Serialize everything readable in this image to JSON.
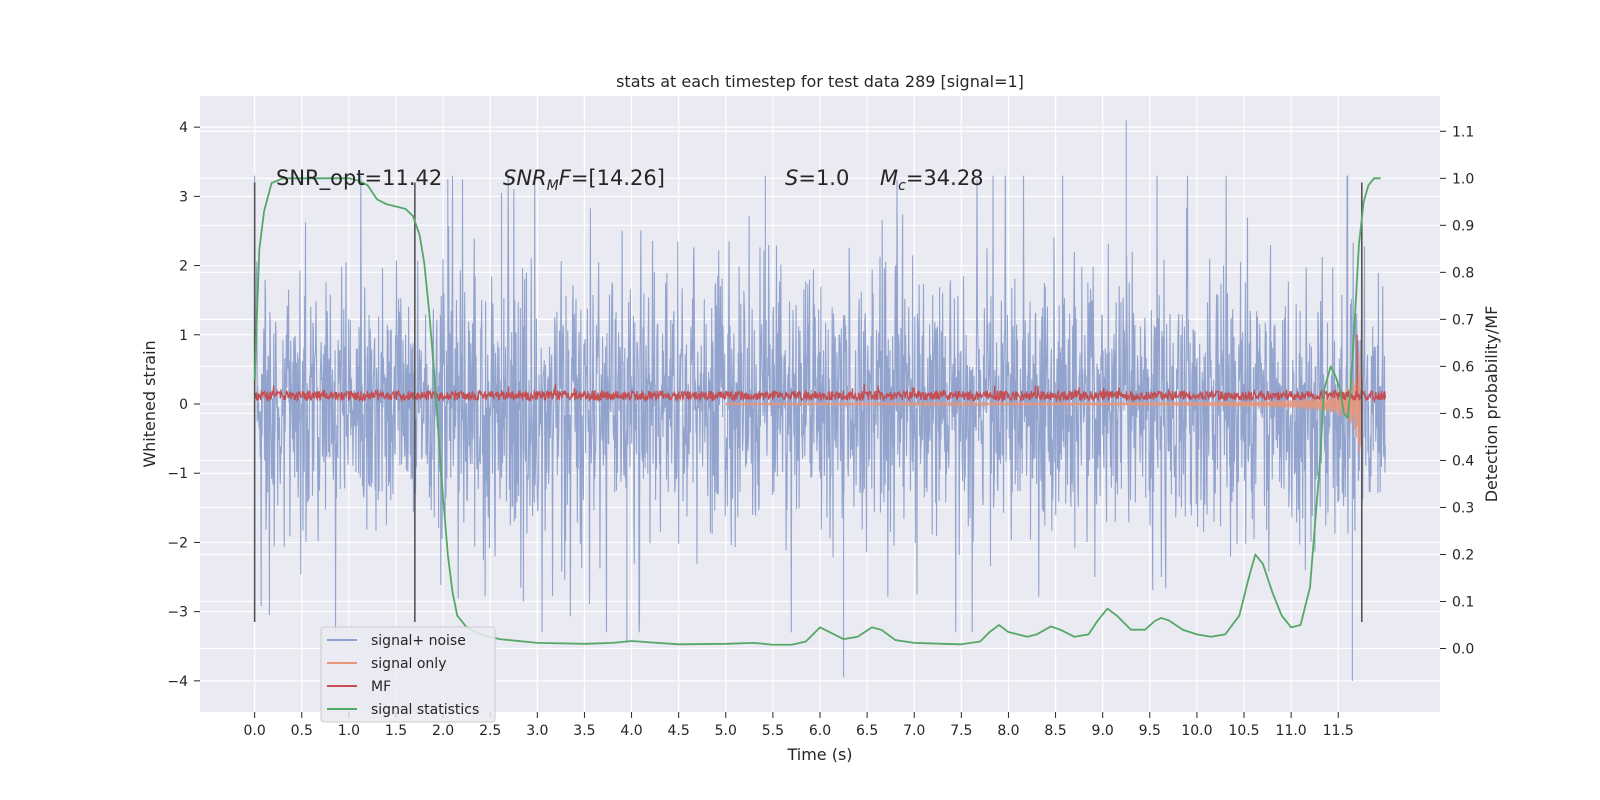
{
  "chart_data": {
    "type": "line",
    "title": "stats at each timestep for test data 289 [signal=1]",
    "xlabel": "Time (s)",
    "ylabel": "Whitened strain",
    "y2label": "Detection probability/MF",
    "xlim": [
      -0.58,
      12.58
    ],
    "ylim": [
      -4.45,
      4.45
    ],
    "y2lim": [
      -0.135,
      1.175
    ],
    "grid": true,
    "legend_position": "lower-left",
    "x_ticks": [
      0.0,
      0.5,
      1.0,
      1.5,
      2.0,
      2.5,
      3.0,
      3.5,
      4.0,
      4.5,
      5.0,
      5.5,
      6.0,
      6.5,
      7.0,
      7.5,
      8.0,
      8.5,
      9.0,
      9.5,
      10.0,
      10.5,
      11.0,
      11.5
    ],
    "x_tick_labels": [
      "0.0",
      "0.5",
      "1.0",
      "1.5",
      "2.0",
      "2.5",
      "3.0",
      "3.5",
      "4.0",
      "4.5",
      "5.0",
      "5.5",
      "6.0",
      "6.5",
      "7.0",
      "7.5",
      "8.0",
      "8.5",
      "9.0",
      "9.5",
      "10.0",
      "10.5",
      "11.0",
      "11.5"
    ],
    "y_ticks": [
      -4,
      -3,
      -2,
      -1,
      0,
      1,
      2,
      3,
      4
    ],
    "y_tick_labels": [
      "−4",
      "−3",
      "−2",
      "−1",
      "0",
      "1",
      "2",
      "3",
      "4"
    ],
    "y2_ticks": [
      0.0,
      0.1,
      0.2,
      0.3,
      0.4,
      0.5,
      0.6,
      0.7,
      0.8,
      0.9,
      1.0,
      1.1
    ],
    "y2_tick_labels": [
      "0.0",
      "0.1",
      "0.2",
      "0.3",
      "0.4",
      "0.5",
      "0.6",
      "0.7",
      "0.8",
      "0.9",
      "1.0",
      "1.1"
    ],
    "vlines": [
      {
        "x": 0.0,
        "ymin": -3.15,
        "ymax": 3.2
      },
      {
        "x": 1.7,
        "ymin": -3.15,
        "ymax": 3.2
      },
      {
        "x": 11.75,
        "ymin": -3.15,
        "ymax": 3.2
      }
    ],
    "annotations": [
      {
        "parts": [
          {
            "text": "SNR_opt=11.42",
            "italic": false
          }
        ]
      },
      {
        "parts": [
          {
            "text": "SNR",
            "italic": true
          },
          {
            "text": "M",
            "italic": true,
            "sub": true
          },
          {
            "text": "F",
            "italic": true
          },
          {
            "text": "=[14.26]",
            "italic": false
          }
        ]
      },
      {
        "parts": [
          {
            "text": "S",
            "italic": true
          },
          {
            "text": "=1.0",
            "italic": false
          }
        ]
      },
      {
        "parts": [
          {
            "text": "M",
            "italic": true
          },
          {
            "text": "c",
            "italic": true,
            "sub": true
          },
          {
            "text": "=34.28",
            "italic": false
          }
        ]
      }
    ],
    "series": [
      {
        "name": "signal+ noise",
        "color": "#8da0cb",
        "kind": "noise",
        "axis": "left",
        "x_range": [
          0.0,
          12.0
        ],
        "approx_envelope": [
          -2.2,
          2.2
        ],
        "peaks": [
          {
            "x": 9.25,
            "y": 4.1
          },
          {
            "x": 11.65,
            "y": -4.0
          },
          {
            "x": 6.25,
            "y": -3.95
          },
          {
            "x": 11.6,
            "y": 3.3
          },
          {
            "x": 5.42,
            "y": 3.3
          },
          {
            "x": 2.05,
            "y": 3.25
          },
          {
            "x": 2.62,
            "y": 3.05
          },
          {
            "x": 3.95,
            "y": -3.45
          }
        ]
      },
      {
        "name": "signal only",
        "color": "#e8967a",
        "kind": "chirp",
        "axis": "left",
        "x_range": [
          5.0,
          11.75
        ],
        "amplitude_end": 2.6
      },
      {
        "name": "MF",
        "color": "#c44e52",
        "kind": "mf",
        "axis": "left",
        "x_range": [
          0.0,
          12.0
        ],
        "approx_level": 0.12,
        "spike": {
          "x": 11.7,
          "y": 1.0
        }
      },
      {
        "name": "signal statistics",
        "color": "#55a868",
        "kind": "line",
        "axis": "right",
        "points": [
          [
            0.0,
            0.57
          ],
          [
            0.05,
            0.85
          ],
          [
            0.1,
            0.93
          ],
          [
            0.18,
            0.99
          ],
          [
            0.3,
            1.0
          ],
          [
            0.5,
            1.0
          ],
          [
            0.8,
            1.0
          ],
          [
            1.0,
            1.0
          ],
          [
            1.1,
            0.995
          ],
          [
            1.2,
            0.985
          ],
          [
            1.3,
            0.955
          ],
          [
            1.4,
            0.945
          ],
          [
            1.5,
            0.94
          ],
          [
            1.6,
            0.935
          ],
          [
            1.68,
            0.92
          ],
          [
            1.75,
            0.88
          ],
          [
            1.8,
            0.82
          ],
          [
            1.85,
            0.72
          ],
          [
            1.9,
            0.6
          ],
          [
            1.95,
            0.46
          ],
          [
            2.0,
            0.32
          ],
          [
            2.05,
            0.2
          ],
          [
            2.1,
            0.12
          ],
          [
            2.15,
            0.07
          ],
          [
            2.25,
            0.045
          ],
          [
            2.4,
            0.03
          ],
          [
            2.6,
            0.02
          ],
          [
            3.0,
            0.012
          ],
          [
            3.5,
            0.01
          ],
          [
            3.8,
            0.012
          ],
          [
            4.0,
            0.016
          ],
          [
            4.2,
            0.013
          ],
          [
            4.5,
            0.009
          ],
          [
            5.0,
            0.01
          ],
          [
            5.3,
            0.012
          ],
          [
            5.5,
            0.008
          ],
          [
            5.7,
            0.008
          ],
          [
            5.85,
            0.015
          ],
          [
            6.0,
            0.045
          ],
          [
            6.1,
            0.035
          ],
          [
            6.25,
            0.02
          ],
          [
            6.4,
            0.025
          ],
          [
            6.55,
            0.045
          ],
          [
            6.65,
            0.04
          ],
          [
            6.8,
            0.018
          ],
          [
            7.0,
            0.012
          ],
          [
            7.3,
            0.01
          ],
          [
            7.5,
            0.009
          ],
          [
            7.7,
            0.015
          ],
          [
            7.8,
            0.035
          ],
          [
            7.9,
            0.05
          ],
          [
            8.0,
            0.035
          ],
          [
            8.2,
            0.025
          ],
          [
            8.3,
            0.03
          ],
          [
            8.45,
            0.047
          ],
          [
            8.55,
            0.04
          ],
          [
            8.7,
            0.025
          ],
          [
            8.85,
            0.03
          ],
          [
            8.95,
            0.06
          ],
          [
            9.05,
            0.085
          ],
          [
            9.15,
            0.07
          ],
          [
            9.3,
            0.04
          ],
          [
            9.45,
            0.04
          ],
          [
            9.55,
            0.058
          ],
          [
            9.62,
            0.065
          ],
          [
            9.7,
            0.06
          ],
          [
            9.85,
            0.04
          ],
          [
            10.0,
            0.03
          ],
          [
            10.15,
            0.025
          ],
          [
            10.3,
            0.03
          ],
          [
            10.45,
            0.07
          ],
          [
            10.55,
            0.15
          ],
          [
            10.62,
            0.2
          ],
          [
            10.7,
            0.18
          ],
          [
            10.8,
            0.12
          ],
          [
            10.9,
            0.07
          ],
          [
            11.0,
            0.045
          ],
          [
            11.1,
            0.05
          ],
          [
            11.2,
            0.13
          ],
          [
            11.3,
            0.38
          ],
          [
            11.35,
            0.55
          ],
          [
            11.42,
            0.6
          ],
          [
            11.47,
            0.58
          ],
          [
            11.52,
            0.55
          ],
          [
            11.56,
            0.5
          ],
          [
            11.6,
            0.49
          ],
          [
            11.63,
            0.55
          ],
          [
            11.67,
            0.68
          ],
          [
            11.72,
            0.86
          ],
          [
            11.77,
            0.95
          ],
          [
            11.82,
            0.985
          ],
          [
            11.88,
            1.0
          ],
          [
            11.95,
            1.0
          ]
        ]
      }
    ]
  }
}
